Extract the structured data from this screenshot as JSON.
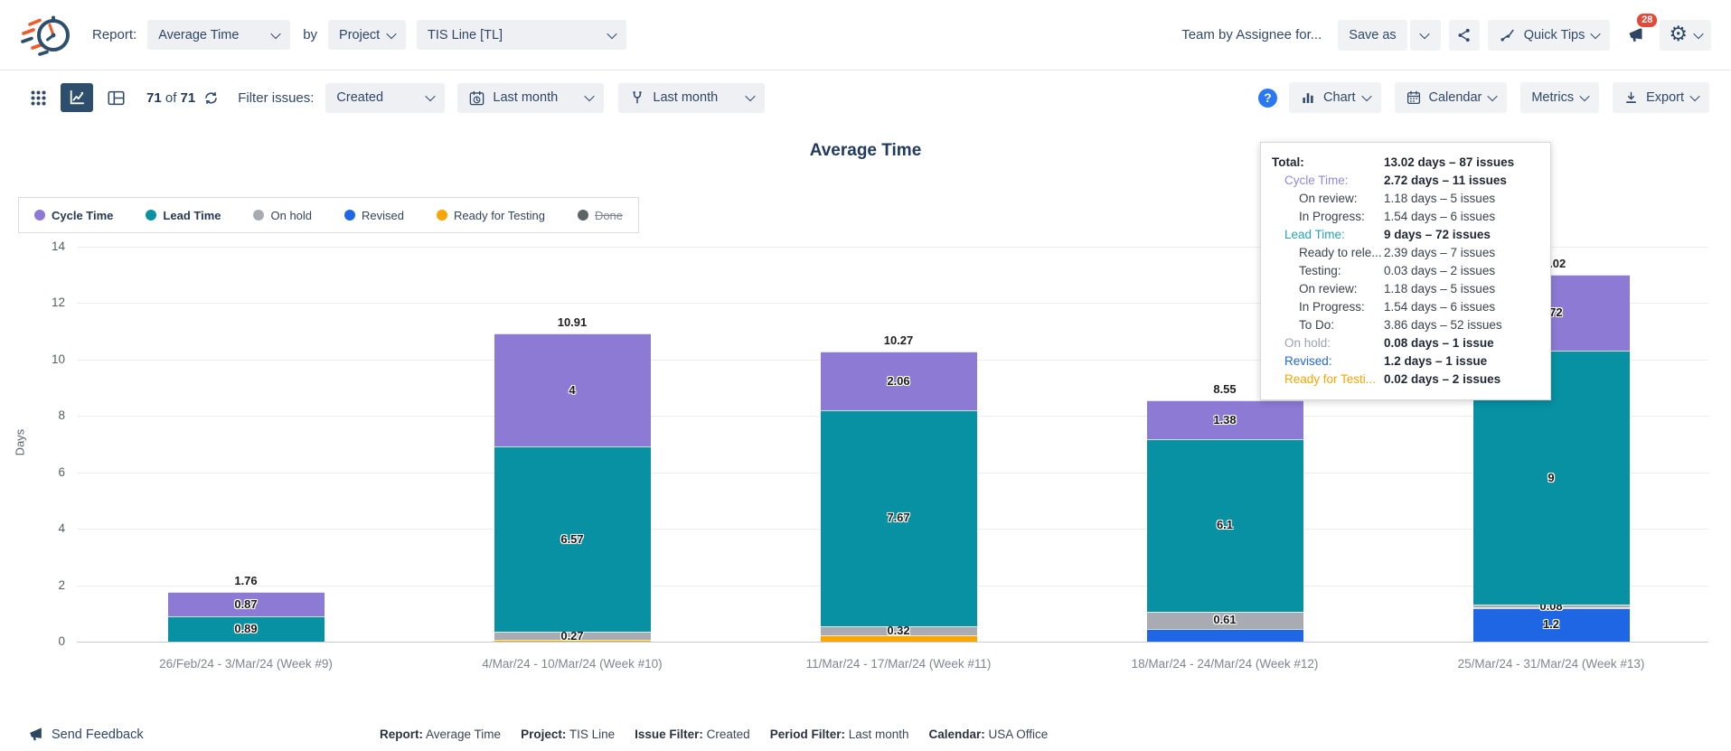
{
  "header": {
    "report_label": "Report:",
    "report_select": "Average Time",
    "by_label": "by",
    "group_select": "Project",
    "scope_select": "TIS Line [TL]",
    "saved_report_name": "Team by Assignee for...",
    "save_as_label": "Save as",
    "quick_tips_label": "Quick Tips",
    "notification_count": "28"
  },
  "toolbar": {
    "issues_current": "71",
    "issues_separator": "of",
    "issues_total": "71",
    "filter_issues_label": "Filter issues:",
    "issue_filter_select": "Created",
    "period_select": "Last month",
    "second_period_select": "Last month",
    "help_glyph": "?",
    "chart_label": "Chart",
    "calendar_label": "Calendar",
    "metrics_label": "Metrics",
    "export_label": "Export"
  },
  "chart_data": {
    "type": "bar",
    "stacked": true,
    "title": "Average Time",
    "ylabel": "Days",
    "ylim": [
      0,
      14
    ],
    "yticks": [
      0,
      2,
      4,
      6,
      8,
      10,
      12,
      14
    ],
    "grid": true,
    "legend_position": "top-left",
    "categories": [
      "26/Feb/24 - 3/Mar/24 (Week #9)",
      "4/Mar/24 - 10/Mar/24 (Week #10)",
      "11/Mar/24 - 17/Mar/24 (Week #11)",
      "18/Mar/24 - 24/Mar/24 (Week #12)",
      "25/Mar/24 - 31/Mar/24 (Week #13)"
    ],
    "series": [
      {
        "name": "Revised",
        "color": "#1E66E4",
        "values": [
          0,
          0,
          0,
          0.46,
          1.2
        ],
        "labels": [
          "",
          "",
          "",
          "",
          "1.2"
        ]
      },
      {
        "name": "Ready for Testing",
        "color": "#F7A602",
        "values": [
          0,
          0.07,
          0.22,
          0,
          0.02
        ],
        "labels": [
          "",
          "",
          "",
          "",
          ""
        ]
      },
      {
        "name": "On hold",
        "color": "#A8ABB1",
        "values": [
          0,
          0.27,
          0.32,
          0.61,
          0.08
        ],
        "labels": [
          "",
          "0.27",
          "0.32",
          "0.61",
          "0.08"
        ]
      },
      {
        "name": "Lead Time",
        "color": "#0791A3",
        "values": [
          0.89,
          6.57,
          7.67,
          6.1,
          9
        ],
        "labels": [
          "0.89",
          "6.57",
          "7.67",
          "6.1",
          "9"
        ]
      },
      {
        "name": "Cycle Time",
        "color": "#8D7AD5",
        "values": [
          0.87,
          4,
          2.06,
          1.38,
          2.72
        ],
        "labels": [
          "0.87",
          "4",
          "2.06",
          "1.38",
          "2.72"
        ]
      }
    ],
    "totals": [
      "1.76",
      "10.91",
      "10.27",
      "8.55",
      "13.02"
    ],
    "legend": [
      {
        "label": "Cycle Time",
        "color": "#8D7AD5",
        "bold": true,
        "strike": false
      },
      {
        "label": "Lead Time",
        "color": "#0791A3",
        "bold": true,
        "strike": false
      },
      {
        "label": "On hold",
        "color": "#A8ABB1",
        "bold": false,
        "strike": false
      },
      {
        "label": "Revised",
        "color": "#1E66E4",
        "bold": false,
        "strike": false
      },
      {
        "label": "Ready for Testing",
        "color": "#F7A602",
        "bold": false,
        "strike": false
      },
      {
        "label": "Done",
        "color": "#5C6468",
        "bold": false,
        "strike": true
      }
    ]
  },
  "tooltip": {
    "rows": [
      {
        "label": "Total:",
        "value": "13.02 days – 87 issues",
        "indent": 0,
        "label_color": "#1F2733",
        "bold_label": true,
        "bold_value": true
      },
      {
        "label": "Cycle Time:",
        "value": "2.72 days – 11 issues",
        "indent": 1,
        "label_color": "#9188E0",
        "bold_value": true
      },
      {
        "label": "On review:",
        "value": "1.18 days – 5 issues",
        "indent": 2
      },
      {
        "label": "In Progress:",
        "value": "1.54 days – 6 issues",
        "indent": 2
      },
      {
        "label": "Lead Time:",
        "value": "9 days – 72 issues",
        "indent": 1,
        "label_color": "#29A3B7",
        "bold_value": true
      },
      {
        "label": "Ready to rele...",
        "value": "2.39 days – 7 issues",
        "indent": 2
      },
      {
        "label": "Testing:",
        "value": "0.03 days – 2 issues",
        "indent": 2
      },
      {
        "label": "On review:",
        "value": "1.18 days – 5 issues",
        "indent": 2
      },
      {
        "label": "In Progress:",
        "value": "1.54 days – 6 issues",
        "indent": 2
      },
      {
        "label": "To Do:",
        "value": "3.86 days – 52 issues",
        "indent": 2
      },
      {
        "label": "On hold:",
        "value": "0.08 days – 1 issue",
        "indent": 1,
        "label_color": "#9CA3AA",
        "bold_value": true
      },
      {
        "label": "Revised:",
        "value": "1.2 days – 1 issue",
        "indent": 1,
        "label_color": "#2166E0",
        "bold_value": true
      },
      {
        "label": "Ready for Testi...",
        "value": "0.02 days – 2 issues",
        "indent": 1,
        "label_color": "#F7A602",
        "bold_value": true
      }
    ]
  },
  "footer": {
    "feedback_label": "Send Feedback",
    "summary": [
      {
        "label": "Report:",
        "value": "Average Time"
      },
      {
        "label": "Project:",
        "value": "TIS Line"
      },
      {
        "label": "Issue Filter:",
        "value": "Created"
      },
      {
        "label": "Period Filter:",
        "value": "Last month"
      },
      {
        "label": "Calendar:",
        "value": "USA Office"
      }
    ]
  },
  "colors": {
    "accent_navy": "#30486A",
    "selected_tile": "#2E4E6D",
    "badge_red": "#E5493A",
    "help_blue": "#2B78F2"
  }
}
